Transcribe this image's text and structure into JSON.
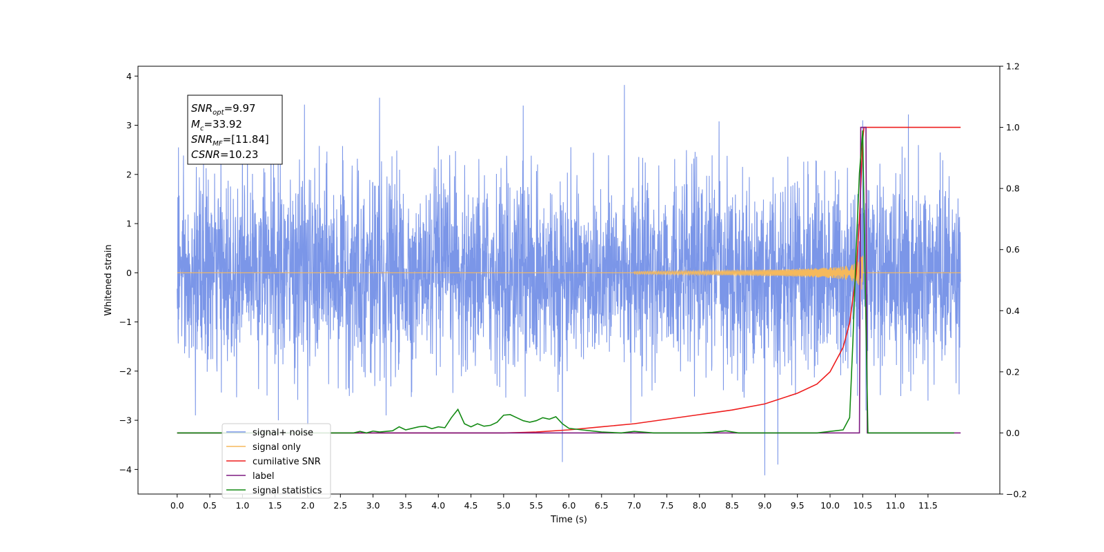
{
  "chart_data": {
    "type": "line",
    "xlabel": "Time (s)",
    "ylabel": "Whitened strain",
    "xlim": [
      -0.6,
      12.6
    ],
    "ylim": [
      -4.5,
      4.2
    ],
    "y2lim": [
      -0.2,
      1.2
    ],
    "x_ticks": [
      "0.0",
      "0.5",
      "1.0",
      "1.5",
      "2.0",
      "2.5",
      "3.0",
      "3.5",
      "4.0",
      "4.5",
      "5.0",
      "5.5",
      "6.0",
      "6.5",
      "7.0",
      "7.5",
      "8.0",
      "8.5",
      "9.0",
      "9.5",
      "10.0",
      "10.5",
      "11.0",
      "11.5"
    ],
    "y_ticks": [
      "−4",
      "−3",
      "−2",
      "−1",
      "0",
      "1",
      "2",
      "3",
      "4"
    ],
    "y2_ticks": [
      "−0.2",
      "0.0",
      "0.2",
      "0.4",
      "0.6",
      "0.8",
      "1.0",
      "1.2"
    ],
    "legend_position": "lower-left",
    "stats_box": {
      "line1": {
        "sym": "SNR",
        "sub": "opt",
        "rest": "=9.97"
      },
      "line2": {
        "sym": "M",
        "sub": "c",
        "rest": "=33.92"
      },
      "line3": {
        "sym": "SNR",
        "sub": "MF",
        "rest": "=[11.84]"
      },
      "line4": {
        "sym": "CSNR",
        "sub": "",
        "rest": "=10.23"
      }
    },
    "series": [
      {
        "name": "signal+ noise",
        "color": "#7b96e8",
        "axis": "left",
        "x_range": [
          0.0,
          12.0
        ],
        "approx_sigma": 0.95,
        "notable_spikes": [
          [
            0.02,
            2.55
          ],
          [
            0.28,
            -2.9
          ],
          [
            1.0,
            2.8
          ],
          [
            1.55,
            -3.0
          ],
          [
            1.95,
            3.42
          ],
          [
            2.0,
            -3.1
          ],
          [
            3.1,
            3.56
          ],
          [
            3.2,
            -2.9
          ],
          [
            5.3,
            3.4
          ],
          [
            5.9,
            -3.85
          ],
          [
            6.85,
            3.82
          ],
          [
            6.95,
            -3.05
          ],
          [
            8.3,
            3.08
          ],
          [
            9.0,
            -4.12
          ],
          [
            9.2,
            -3.9
          ],
          [
            10.5,
            3.1
          ],
          [
            10.55,
            -2.8
          ],
          [
            11.2,
            3.22
          ],
          [
            11.5,
            -2.6
          ]
        ]
      },
      {
        "name": "signal only",
        "color": "#f5b95c",
        "axis": "left",
        "x_range": [
          0.0,
          12.0
        ],
        "chirp_start": 7.0,
        "merger_time": 10.5,
        "peak_amplitude": 0.45
      },
      {
        "name": "cumilative SNR",
        "color": "#ee1c1c",
        "axis": "right",
        "x": [
          5.0,
          5.5,
          6.0,
          6.5,
          7.0,
          7.5,
          8.0,
          8.5,
          9.0,
          9.5,
          9.8,
          10.0,
          10.2,
          10.3,
          10.4,
          10.45,
          10.5,
          10.52,
          12.0
        ],
        "y": [
          0.0,
          0.003,
          0.01,
          0.02,
          0.03,
          0.045,
          0.06,
          0.075,
          0.095,
          0.13,
          0.16,
          0.2,
          0.28,
          0.36,
          0.52,
          0.7,
          0.96,
          1.0,
          1.0
        ]
      },
      {
        "name": "label",
        "color": "#7d1880",
        "axis": "right",
        "x": [
          0.0,
          10.45,
          10.47,
          10.55,
          10.57,
          12.0
        ],
        "y": [
          0.0,
          0.0,
          1.0,
          1.0,
          0.0,
          0.0
        ]
      },
      {
        "name": "signal statistics",
        "color": "#138a13",
        "axis": "right",
        "x": [
          0.0,
          2.7,
          2.8,
          2.9,
          3.0,
          3.1,
          3.3,
          3.4,
          3.5,
          3.7,
          3.8,
          3.9,
          4.0,
          4.1,
          4.2,
          4.3,
          4.4,
          4.5,
          4.6,
          4.7,
          4.8,
          4.9,
          5.0,
          5.1,
          5.2,
          5.3,
          5.4,
          5.5,
          5.6,
          5.7,
          5.8,
          5.9,
          6.0,
          6.2,
          6.5,
          6.8,
          7.0,
          7.3,
          7.6,
          8.0,
          8.2,
          8.4,
          8.6,
          9.8,
          10.0,
          10.2,
          10.3,
          10.35,
          10.4,
          10.45,
          10.5,
          10.53,
          10.58,
          11.0,
          11.9
        ],
        "y": [
          0.0,
          0.0,
          0.005,
          0.0,
          0.006,
          0.003,
          0.007,
          0.02,
          0.01,
          0.02,
          0.022,
          0.014,
          0.02,
          0.017,
          0.05,
          0.077,
          0.03,
          0.02,
          0.03,
          0.022,
          0.025,
          0.035,
          0.058,
          0.06,
          0.05,
          0.04,
          0.035,
          0.04,
          0.05,
          0.045,
          0.053,
          0.03,
          0.015,
          0.01,
          0.003,
          0.0,
          0.005,
          0.0,
          0.0,
          0.0,
          0.002,
          0.007,
          0.0,
          0.0,
          0.005,
          0.01,
          0.05,
          0.3,
          0.6,
          0.85,
          0.99,
          0.6,
          0.0,
          0.0,
          0.0
        ]
      }
    ]
  }
}
